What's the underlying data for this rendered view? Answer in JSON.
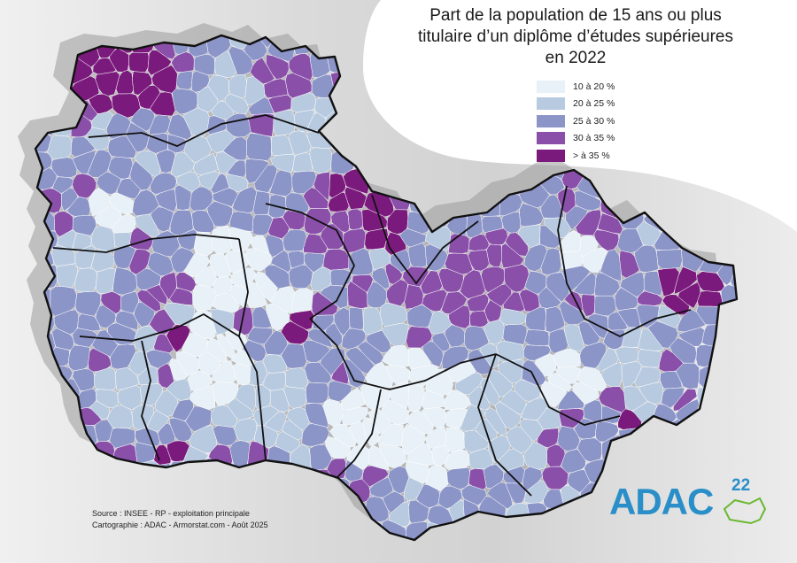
{
  "title_lines": [
    "Part de la population de 15 ans ou plus",
    "titulaire d’un diplôme d’études supérieures",
    "en 2022"
  ],
  "legend": [
    {
      "label": "10 à 20 %",
      "color": "#e8f1f7"
    },
    {
      "label": "20 à 25 %",
      "color": "#b8cae0"
    },
    {
      "label": "25 à 30 %",
      "color": "#8c95c8"
    },
    {
      "label": "30 à 35 %",
      "color": "#8a4fa9"
    },
    {
      "label": "> à 35 %",
      "color": "#7a1a7c"
    }
  ],
  "source": {
    "line1": "Source : INSEE - RP - exploitation principale",
    "line2": "Cartographie : ADAC - Armorstat.com - Août 2025"
  },
  "logo": {
    "text": "ADAC",
    "number": "22",
    "color": "#2a8fc8",
    "accent": "#6ab833"
  },
  "map": {
    "classes": [
      "10 à 20 %",
      "20 à 25 %",
      "25 à 30 %",
      "30 à 35 %",
      "> à 35 %"
    ]
  }
}
